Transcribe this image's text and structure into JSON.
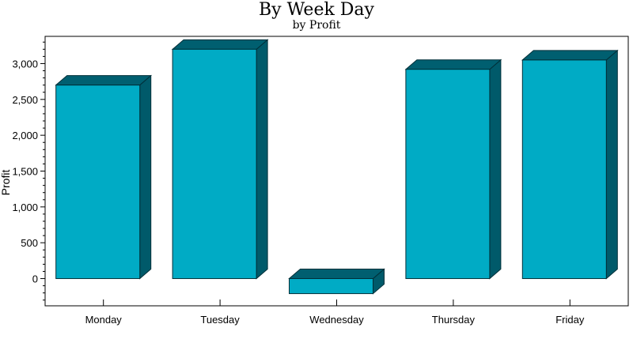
{
  "chart_data": {
    "type": "bar",
    "title": "By Week Day",
    "subtitle": "by Profit",
    "xlabel": "",
    "ylabel": "Profit",
    "categories": [
      "Monday",
      "Tuesday",
      "Wednesday",
      "Thursday",
      "Friday"
    ],
    "values": [
      2700,
      3200,
      -210,
      2920,
      3050
    ],
    "ylim": [
      -380,
      3380
    ],
    "yticks": [
      0,
      500,
      1000,
      1500,
      2000,
      2500,
      3000
    ],
    "ytick_labels": [
      "0",
      "500",
      "1,000",
      "1,500",
      "2,000",
      "2,500",
      "3,000"
    ],
    "grid": false,
    "legend": "none",
    "colors": {
      "bar_front": "#00abc5",
      "bar_side": "#005a6a",
      "bar_top": "#005f70",
      "bar_edge": "#002f38",
      "axis": "#000000"
    }
  }
}
